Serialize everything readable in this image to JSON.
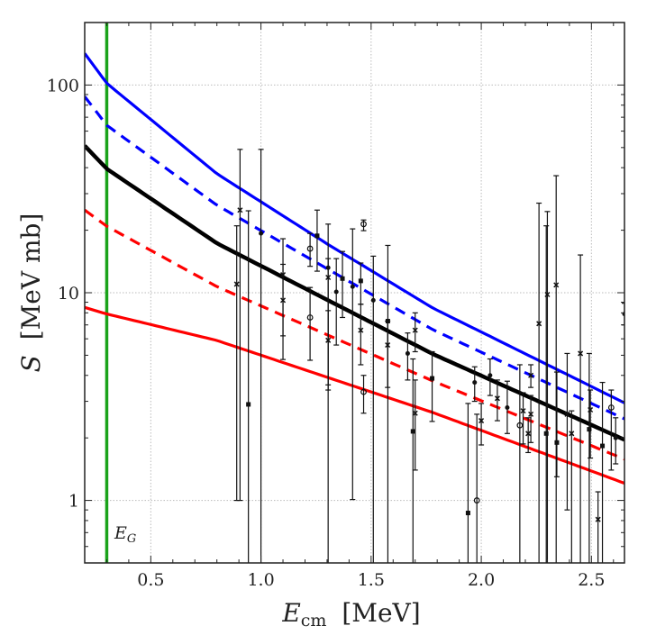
{
  "chart_data": {
    "type": "line",
    "xlabel": "E",
    "xlabel_sub": "cm",
    "xlabel_unit": "[MeV]",
    "ylabel": "S",
    "ylabel_unit": "[MeV mb]",
    "xlim": [
      0.2,
      2.65
    ],
    "ylim": [
      0.5,
      200
    ],
    "yscale": "log",
    "grid": true,
    "x_ticks": [
      0.5,
      1.0,
      1.5,
      2.0,
      2.5
    ],
    "x_tick_labels": [
      "0.5",
      "1.0",
      "1.5",
      "2.0",
      "2.5"
    ],
    "y_ticks": [
      1,
      10,
      100
    ],
    "y_tick_labels": [
      "1",
      "10",
      "100"
    ],
    "vline": {
      "x": 0.3,
      "label": "E",
      "label_sub": "G",
      "color": "#1aa31a"
    },
    "series": [
      {
        "color": "#0000ff",
        "style": "solid",
        "x": [
          0.2,
          0.3,
          0.8,
          1.3,
          1.78,
          2.65
        ],
        "y": [
          142,
          102,
          37.4,
          17.2,
          8.44,
          2.95
        ]
      },
      {
        "color": "#0000ff",
        "style": "dashed",
        "x": [
          0.2,
          0.3,
          0.8,
          1.78,
          2.65
        ],
        "y": [
          88,
          64,
          26.4,
          6.64,
          2.47
        ]
      },
      {
        "color": "#000000",
        "style": "solid-thick",
        "x": [
          0.2,
          0.3,
          0.8,
          1.78,
          2.65
        ],
        "y": [
          51,
          39.5,
          17.3,
          5.07,
          1.96
        ]
      },
      {
        "color": "#ff0000",
        "style": "dashed",
        "x": [
          0.2,
          0.3,
          0.8,
          1.78,
          2.65
        ],
        "y": [
          25,
          20.9,
          10.7,
          3.76,
          1.58
        ]
      },
      {
        "color": "#ff0000",
        "style": "solid",
        "x": [
          0.2,
          0.3,
          0.8,
          1.78,
          2.65
        ],
        "y": [
          8.5,
          7.9,
          5.89,
          2.65,
          1.21
        ]
      }
    ],
    "data_points_columns": [
      "E",
      "S",
      "S_low",
      "S_high",
      "marker"
    ],
    "data_points": [
      [
        0.89,
        11,
        1.0,
        21,
        "x"
      ],
      [
        0.905,
        25,
        1.0,
        49,
        "x"
      ],
      [
        0.943,
        2.9,
        0.3,
        24.8,
        "s"
      ],
      [
        1.0,
        19.3,
        0.3,
        49,
        "d"
      ],
      [
        1.1,
        12.2,
        4.77,
        18.2,
        "x"
      ],
      [
        1.1,
        9.2,
        6.2,
        13.7,
        "x"
      ],
      [
        1.223,
        16.3,
        13.4,
        19.3,
        "o"
      ],
      [
        1.223,
        7.6,
        4.73,
        10.6,
        "o"
      ],
      [
        1.255,
        18.8,
        12.7,
        25,
        "s"
      ],
      [
        1.305,
        13.2,
        3.4,
        21.4,
        "d"
      ],
      [
        1.305,
        11.85,
        3.6,
        14.6,
        "x"
      ],
      [
        1.305,
        5.9,
        0.3,
        8.2,
        "x"
      ],
      [
        1.342,
        10.1,
        5.6,
        14.6,
        "d"
      ],
      [
        1.37,
        11.7,
        7.6,
        15.8,
        "s"
      ],
      [
        1.416,
        10.7,
        1.01,
        20.3,
        "d"
      ],
      [
        1.453,
        11.4,
        8.8,
        13.9,
        "s"
      ],
      [
        1.453,
        6.6,
        4.5,
        8.8,
        "x"
      ],
      [
        1.466,
        21.4,
        19.9,
        22.4,
        "o"
      ],
      [
        1.466,
        3.33,
        2.63,
        4.0,
        "o"
      ],
      [
        1.51,
        9.2,
        0.3,
        15.0,
        "d"
      ],
      [
        1.576,
        7.3,
        0.3,
        16.9,
        "s"
      ],
      [
        1.575,
        5.6,
        3.5,
        7.3,
        "x"
      ],
      [
        1.666,
        5.1,
        3.8,
        6.4,
        "d"
      ],
      [
        1.69,
        2.15,
        0.3,
        4.8,
        "s"
      ],
      [
        1.7,
        2.63,
        1.4,
        3.8,
        "x"
      ],
      [
        1.7,
        6.6,
        5.2,
        8.0,
        "x"
      ],
      [
        1.777,
        3.87,
        2.4,
        5.2,
        "s"
      ],
      [
        1.94,
        0.87,
        0.3,
        2.93,
        "s"
      ],
      [
        1.97,
        3.7,
        3.0,
        4.4,
        "d"
      ],
      [
        1.98,
        1.0,
        0.3,
        2.6,
        "o"
      ],
      [
        2.0,
        2.42,
        1.85,
        2.93,
        "x"
      ],
      [
        2.04,
        4.0,
        3.2,
        4.8,
        "d"
      ],
      [
        2.073,
        3.1,
        2.42,
        3.8,
        "x"
      ],
      [
        2.118,
        2.8,
        2.1,
        3.75,
        "d"
      ],
      [
        2.175,
        2.3,
        0.3,
        4.5,
        "o"
      ],
      [
        2.19,
        2.7,
        1.87,
        3.3,
        "x"
      ],
      [
        2.213,
        2.1,
        1.7,
        2.5,
        "x"
      ],
      [
        2.225,
        4.0,
        3.5,
        4.5,
        "x"
      ],
      [
        2.225,
        2.6,
        1.9,
        3.2,
        "x"
      ],
      [
        2.262,
        7.1,
        0.3,
        27,
        "x"
      ],
      [
        2.295,
        2.1,
        0.3,
        21,
        "s"
      ],
      [
        2.3,
        9.8,
        0.3,
        24.6,
        "x"
      ],
      [
        2.34,
        10.9,
        0.3,
        36.6,
        "x"
      ],
      [
        2.343,
        1.9,
        1.3,
        4.15,
        "s"
      ],
      [
        2.39,
        2.6,
        0.9,
        5.1,
        "x"
      ],
      [
        2.41,
        2.1,
        0.3,
        2.7,
        "x"
      ],
      [
        2.45,
        5.1,
        0.3,
        15.2,
        "x"
      ],
      [
        2.49,
        2.2,
        0.3,
        5.1,
        "s"
      ],
      [
        2.495,
        2.73,
        1.6,
        3.4,
        "x"
      ],
      [
        2.53,
        0.81,
        0.3,
        1.1,
        "x"
      ],
      [
        2.55,
        1.83,
        0.3,
        3.7,
        "s"
      ],
      [
        2.59,
        2.8,
        1.4,
        3.4,
        "o"
      ],
      [
        2.61,
        2.0,
        1.5,
        2.5,
        "d"
      ],
      [
        2.65,
        7.9,
        7.0,
        8.9,
        "d"
      ]
    ]
  }
}
